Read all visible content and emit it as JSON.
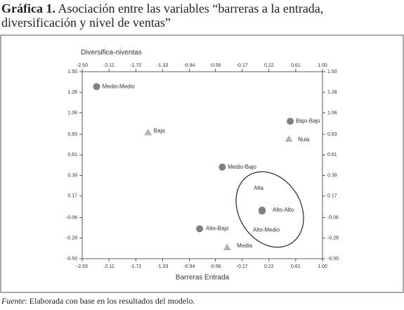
{
  "chart_data": {
    "type": "scatter",
    "title_label": "Gráfica 1.",
    "title": "Asociación entre las variables “barreras a la entrada, diversificación y nivel de ventas”",
    "xlabel": "Barreras Entrada",
    "ylabel": "Diversifica-niventas",
    "source_label": "Fuente",
    "source": ": Elaborada con base en los resultados del modelo.",
    "xlim": [
      -2.5,
      1.0
    ],
    "ylim": [
      -0.5,
      1.5
    ],
    "xticks": [
      {
        "value": -2.5,
        "label": "-2.50"
      },
      -2.11,
      -1.72,
      -1.33,
      -0.94,
      -0.56,
      -0.17,
      0.22,
      0.61,
      {
        "value": 1.0,
        "label": "1.00"
      }
    ],
    "yticks": [
      {
        "value": 1.5,
        "label": "1.50"
      },
      1.28,
      1.06,
      0.83,
      0.61,
      0.39,
      0.17,
      -0.06,
      -0.28,
      {
        "value": -0.5,
        "label": "-0.50"
      }
    ],
    "points": [
      {
        "label": "Medio-Medio",
        "x": -2.29,
        "y": 1.34,
        "marker": "circle",
        "color": "#7f7f7f"
      },
      {
        "label": "Baja",
        "x": -1.54,
        "y": 0.85,
        "marker": "triangle",
        "color": "#b5b5b5"
      },
      {
        "label": "Bajo-Bajo",
        "x": 0.53,
        "y": 0.97,
        "marker": "circle",
        "color": "#7f7f7f"
      },
      {
        "label": "Nula",
        "x": 0.51,
        "y": 0.78,
        "marker": "triangle",
        "color": "#b5b5b5"
      },
      {
        "label": "Medio-Bajo",
        "x": -0.46,
        "y": 0.48,
        "marker": "circle",
        "color": "#7f7f7f"
      },
      {
        "label": "Alta",
        "x": 0.12,
        "y": 0.02,
        "marker": "triangle",
        "color": "#b5b5b5"
      },
      {
        "label": "Alto-Alto",
        "x": 0.12,
        "y": 0.02,
        "marker": "circle",
        "color": "#7f7f7f"
      },
      {
        "label": "Alto-Medio",
        "x": 0.12,
        "y": 0.01,
        "marker": "circle",
        "color": "#7f7f7f"
      },
      {
        "label": "Alto-Bajo",
        "x": -0.79,
        "y": -0.18,
        "marker": "circle",
        "color": "#7f7f7f"
      },
      {
        "label": "Media",
        "x": -0.39,
        "y": -0.38,
        "marker": "triangle",
        "color": "#b5b5b5"
      }
    ]
  }
}
